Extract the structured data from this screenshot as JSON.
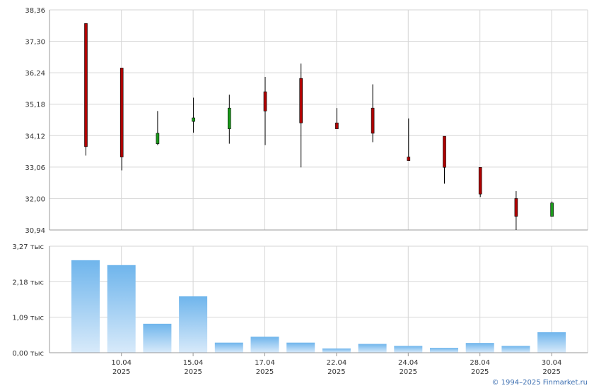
{
  "chart_data": [
    {
      "type": "candlestick",
      "title": "",
      "xlabel": "",
      "ylabel": "",
      "ylim": [
        30.94,
        38.36
      ],
      "y_ticks": [
        "38,36",
        "37,30",
        "36,24",
        "35,18",
        "34,12",
        "33,06",
        "32,00",
        "30,94"
      ],
      "grid": true,
      "colors": {
        "up": "#1a9a1a",
        "down": "#b00000",
        "wick": "#000000"
      },
      "candles": [
        {
          "open": 37.9,
          "high": 37.9,
          "low": 33.45,
          "close": 33.75
        },
        {
          "open": 36.4,
          "high": 36.4,
          "low": 32.95,
          "close": 33.4
        },
        {
          "open": 33.85,
          "high": 34.95,
          "low": 33.8,
          "close": 34.2
        },
        {
          "open": 34.6,
          "high": 35.4,
          "low": 34.22,
          "close": 34.72
        },
        {
          "open": 34.35,
          "high": 35.5,
          "low": 33.85,
          "close": 35.05
        },
        {
          "open": 35.6,
          "high": 36.1,
          "low": 33.8,
          "close": 34.95
        },
        {
          "open": 36.05,
          "high": 36.55,
          "low": 33.05,
          "close": 34.55
        },
        {
          "open": 34.55,
          "high": 35.05,
          "low": 34.35,
          "close": 34.35
        },
        {
          "open": 35.05,
          "high": 35.85,
          "low": 33.9,
          "close": 34.2
        },
        {
          "open": 33.4,
          "high": 34.7,
          "low": 33.3,
          "close": 33.28
        },
        {
          "open": 34.1,
          "high": 34.1,
          "low": 32.5,
          "close": 33.05
        },
        {
          "open": 33.05,
          "high": 33.05,
          "low": 32.05,
          "close": 32.15
        },
        {
          "open": 32.0,
          "high": 32.25,
          "low": 30.94,
          "close": 31.4
        },
        {
          "open": 31.4,
          "high": 31.9,
          "low": 31.4,
          "close": 31.85
        }
      ]
    },
    {
      "type": "bar",
      "title": "",
      "xlabel": "",
      "ylabel": "",
      "ylim": [
        0,
        3.27
      ],
      "y_ticks": [
        "3,27 тыс",
        "2,18 тыс",
        "1,09 тыс",
        "0,00 тыс"
      ],
      "grid": true,
      "bar_color_top": "#6fb5ec",
      "bar_color_bottom": "#d8eafa",
      "values": [
        2.84,
        2.69,
        0.89,
        1.73,
        0.31,
        0.49,
        0.31,
        0.13,
        0.27,
        0.21,
        0.15,
        0.3,
        0.21,
        0.63
      ]
    }
  ],
  "x_axis": {
    "ticks": [
      {
        "index": 1,
        "line1": "10.04",
        "line2": "2025"
      },
      {
        "index": 3,
        "line1": "15.04",
        "line2": "2025"
      },
      {
        "index": 5,
        "line1": "17.04",
        "line2": "2025"
      },
      {
        "index": 7,
        "line1": "22.04",
        "line2": "2025"
      },
      {
        "index": 9,
        "line1": "24.04",
        "line2": "2025"
      },
      {
        "index": 11,
        "line1": "28.04",
        "line2": "2025"
      },
      {
        "index": 13,
        "line1": "30.04",
        "line2": "2025"
      }
    ]
  },
  "copyright": "© 1994–2025 Finmarket.ru"
}
